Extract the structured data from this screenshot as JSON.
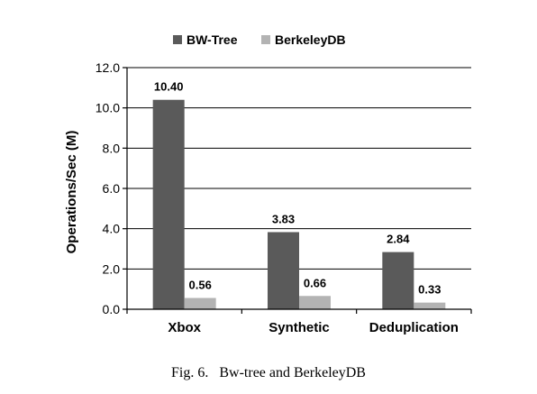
{
  "chart_data": {
    "type": "bar",
    "title": "",
    "xlabel": "",
    "ylabel": "Operations/Sec (M)",
    "categories": [
      "Xbox",
      "Synthetic",
      "Deduplication"
    ],
    "series": [
      {
        "name": "BW-Tree",
        "values": [
          10.4,
          3.83,
          2.84
        ],
        "labels": [
          "10.40",
          "3.83",
          "2.84"
        ],
        "color": "#5a5a5a"
      },
      {
        "name": "BerkeleyDB",
        "values": [
          0.56,
          0.66,
          0.33
        ],
        "labels": [
          "0.56",
          "0.66",
          "0.33"
        ],
        "color": "#b3b3b3"
      }
    ],
    "ylim": [
      0,
      12
    ],
    "yticks": [
      0,
      2,
      4,
      6,
      8,
      10,
      12
    ],
    "ytick_labels": [
      "0.0",
      "2.0",
      "4.0",
      "6.0",
      "8.0",
      "10.0",
      "12.0"
    ],
    "grid": true,
    "legend_position": "top-center"
  },
  "caption": "Fig. 6.   Bw-tree and BerkeleyDB"
}
